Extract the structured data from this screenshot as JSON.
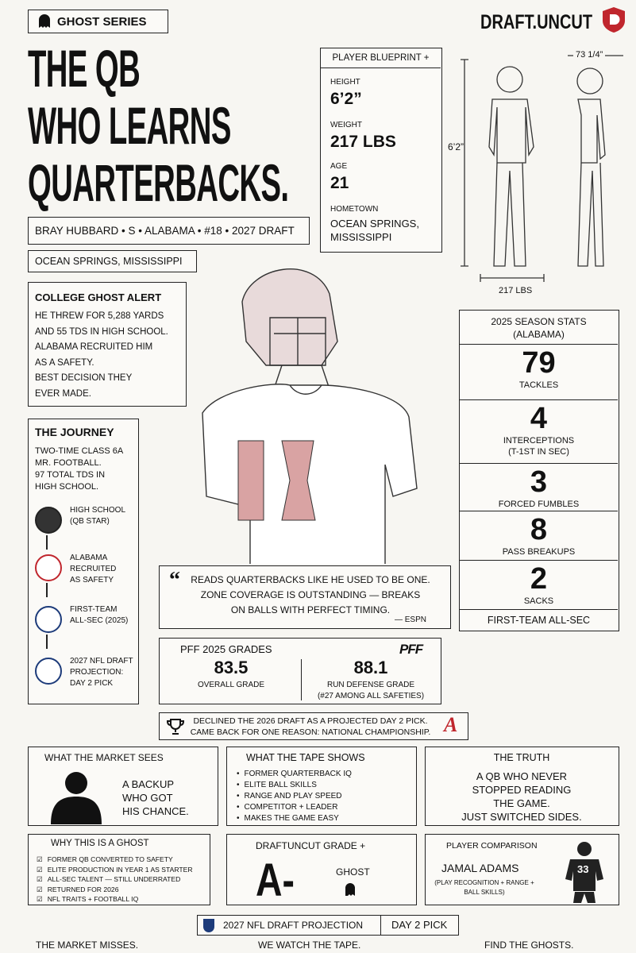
{
  "header": {
    "badge": "GHOST SERIES",
    "brand": "DRAFT.UNCUT",
    "title_lines": [
      "THE QB",
      "WHO LEARNS",
      "QUARTERBACKS."
    ],
    "player_line": "BRAY HUBBARD • S • ALABAMA • #18 • 2027 DRAFT",
    "hometown": "OCEAN SPRINGS, MISSISSIPPI"
  },
  "blueprint": {
    "title": "PLAYER BLUEPRINT +",
    "fields": [
      {
        "label": "HEIGHT",
        "value": "6’2”"
      },
      {
        "label": "WEIGHT",
        "value": "217 LBS"
      },
      {
        "label": "AGE",
        "value": "21"
      },
      {
        "label": "HOMETOWN",
        "value": "OCEAN SPRINGS, MISSISSIPPI"
      }
    ],
    "dims": {
      "height": "6’2”",
      "weight": "217 LBS",
      "width": "73 1/4”"
    }
  },
  "ghost_alert": {
    "title": "COLLEGE GHOST ALERT",
    "lines": [
      "HE THREW FOR 5,288 YARDS",
      "AND 55 TDS IN HIGH SCHOOL.",
      "ALABAMA RECRUITED HIM",
      "AS A SAFETY.",
      "BEST DECISION THEY",
      "EVER MADE."
    ]
  },
  "journey": {
    "title": "THE JOURNEY",
    "intro": [
      "TWO-TIME CLASS 6A",
      "MR. FOOTBALL.",
      "97 TOTAL TDS IN",
      "HIGH SCHOOL."
    ],
    "steps": [
      [
        "HIGH SCHOOL",
        "(QB STAR)"
      ],
      [
        "ALABAMA",
        "RECRUITED",
        "AS SAFETY"
      ],
      [
        "FIRST-TEAM",
        "ALL-SEC (2025)"
      ],
      [
        "2027 NFL DRAFT",
        "PROJECTION:",
        "DAY 2 PICK"
      ]
    ]
  },
  "season_stats": {
    "title": [
      "2025 SEASON STATS",
      "(ALABAMA)"
    ],
    "stats": [
      {
        "value": 79,
        "label": [
          "TACKLES"
        ]
      },
      {
        "value": 4,
        "label": [
          "INTERCEPTIONS",
          "(T-1ST IN SEC)"
        ]
      },
      {
        "value": 3,
        "label": [
          "FORCED FUMBLES"
        ]
      },
      {
        "value": 8,
        "label": [
          "PASS BREAKUPS"
        ]
      },
      {
        "value": 2,
        "label": [
          "SACKS"
        ]
      }
    ],
    "footer": "FIRST-TEAM ALL-SEC"
  },
  "quote": {
    "lines": [
      "READS QUARTERBACKS LIKE HE USED TO BE ONE.",
      "ZONE COVERAGE IS OUTSTANDING — BREAKS",
      "ON BALLS WITH PERFECT TIMING."
    ],
    "source": "— ESPN"
  },
  "pff": {
    "title": "PFF 2025 GRADES",
    "logo": "PFF",
    "grades": [
      {
        "value": 83.5,
        "label": [
          "OVERALL GRADE"
        ]
      },
      {
        "value": 88.1,
        "label": [
          "RUN DEFENSE GRADE",
          "(#27 AMONG ALL SAFETIES)"
        ]
      }
    ]
  },
  "declined": {
    "lines": [
      "DECLINED THE 2026 DRAFT AS A PROJECTED DAY 2 PICK.",
      "CAME BACK FOR ONE REASON: NATIONAL CHAMPIONSHIP."
    ]
  },
  "market": {
    "title": "WHAT THE MARKET SEES",
    "lines": [
      "A BACKUP",
      "WHO GOT",
      "HIS CHANCE."
    ]
  },
  "tape": {
    "title": "WHAT THE TAPE SHOWS",
    "items": [
      "FORMER QUARTERBACK IQ",
      "ELITE BALL SKILLS",
      "RANGE AND PLAY SPEED",
      "COMPETITOR + LEADER",
      "MAKES THE GAME EASY"
    ]
  },
  "truth": {
    "title": "THE TRUTH",
    "lines": [
      "A QB WHO NEVER",
      "STOPPED READING",
      "THE GAME.",
      "JUST SWITCHED SIDES."
    ]
  },
  "why": {
    "title": "WHY THIS IS A GHOST",
    "items": [
      "FORMER QB CONVERTED TO SAFETY",
      "ELITE PRODUCTION IN YEAR 1 AS STARTER",
      "ALL-SEC TALENT — STILL UNDERRATED",
      "RETURNED FOR 2026",
      "NFL TRAITS + FOOTBALL IQ"
    ]
  },
  "grade": {
    "title": "DRAFTUNCUT GRADE +",
    "value": "A-",
    "tag": "GHOST"
  },
  "comparison": {
    "title": "PLAYER COMPARISON",
    "name": "JAMAL ADAMS",
    "note": [
      "(PLAY RECOGNITION + RANGE +",
      "BALL SKILLS)"
    ],
    "number": "33"
  },
  "projection": {
    "label": "2027 NFL DRAFT PROJECTION",
    "value": "DAY 2 PICK"
  },
  "footer": [
    "THE MARKET MISSES.",
    "WE WATCH THE TAPE.",
    "FIND THE GHOSTS."
  ]
}
